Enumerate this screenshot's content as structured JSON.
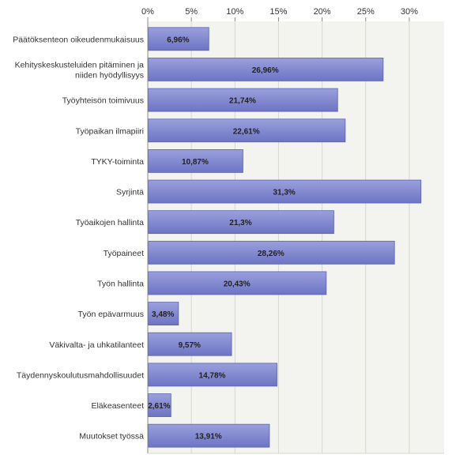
{
  "chart_data": {
    "type": "bar",
    "orientation": "horizontal",
    "title": "",
    "xlabel": "",
    "ylabel": "",
    "xlim": [
      0,
      34
    ],
    "x_ticks": [
      "0%",
      "5%",
      "10%",
      "15%",
      "20%",
      "25%",
      "30%"
    ],
    "x_tick_values": [
      0,
      5,
      10,
      15,
      20,
      25,
      30
    ],
    "grid": true,
    "categories": [
      [
        "Päätöksenteon oikeudenmukaisuus"
      ],
      [
        "Kehityskeskusteluiden pitäminen ja",
        "niiden hyödyllisyys"
      ],
      [
        "Työyhteisön toimivuus"
      ],
      [
        "Työpaikan ilmapiiri"
      ],
      [
        "TYKY-toiminta"
      ],
      [
        "Syrjintä"
      ],
      [
        "Työaikojen hallinta"
      ],
      [
        "Työpaineet"
      ],
      [
        "Työn hallinta"
      ],
      [
        "Työn epävarmuus"
      ],
      [
        "Väkivalta- ja uhkatilanteet"
      ],
      [
        "Täydennyskoulutusmahdollisuudet"
      ],
      [
        "Eläkeasenteet"
      ],
      [
        "Muutokset työssä"
      ]
    ],
    "values": [
      6.96,
      26.96,
      21.74,
      22.61,
      10.87,
      31.3,
      21.3,
      28.26,
      20.43,
      3.48,
      9.57,
      14.78,
      2.61,
      13.91
    ],
    "value_labels": [
      "6,96%",
      "26,96%",
      "21,74%",
      "22,61%",
      "10,87%",
      "31,3%",
      "21,3%",
      "28,26%",
      "20,43%",
      "3,48%",
      "9,57%",
      "14,78%",
      "2,61%",
      "13,91%"
    ],
    "colors": {
      "bar_top": "#9aa0dc",
      "bar_bottom": "#6d74c4",
      "bar_stroke": "#5a62b0",
      "plot_bg": "#f3f4ef",
      "grid": "#d6d8cf",
      "axis": "#888888"
    }
  }
}
